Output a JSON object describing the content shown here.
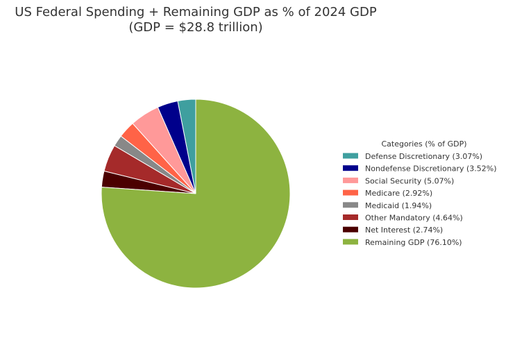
{
  "chart_data": {
    "type": "pie",
    "title_lines": [
      "US Federal Spending + Remaining GDP as % of 2024 GDP",
      "(GDP = $28.8 trillion)"
    ],
    "start_angle_deg": 90,
    "direction": "counterclockwise",
    "slice_edge_color": "#ffffff",
    "legend": {
      "title": "Categories (% of GDP)",
      "placement": "center-right"
    },
    "slices": [
      {
        "name": "Defense Discretionary",
        "value": 3.07,
        "label": "Defense Discretionary (3.07%)",
        "color": "#3f9f9f"
      },
      {
        "name": "Nondefense Discretionary",
        "value": 3.52,
        "label": "Nondefense Discretionary (3.52%)",
        "color": "#00008b"
      },
      {
        "name": "Social Security",
        "value": 5.07,
        "label": "Social Security (5.07%)",
        "color": "#ff9999"
      },
      {
        "name": "Medicare",
        "value": 2.92,
        "label": "Medicare (2.92%)",
        "color": "#ff6347"
      },
      {
        "name": "Medicaid",
        "value": 1.94,
        "label": "Medicaid (1.94%)",
        "color": "#888888"
      },
      {
        "name": "Other Mandatory",
        "value": 4.64,
        "label": "Other Mandatory (4.64%)",
        "color": "#a52a2a"
      },
      {
        "name": "Net Interest",
        "value": 2.74,
        "label": "Net Interest (2.74%)",
        "color": "#4b0000"
      },
      {
        "name": "Remaining GDP",
        "value": 76.1,
        "label": "Remaining GDP (76.10%)",
        "color": "#8db340"
      }
    ]
  }
}
